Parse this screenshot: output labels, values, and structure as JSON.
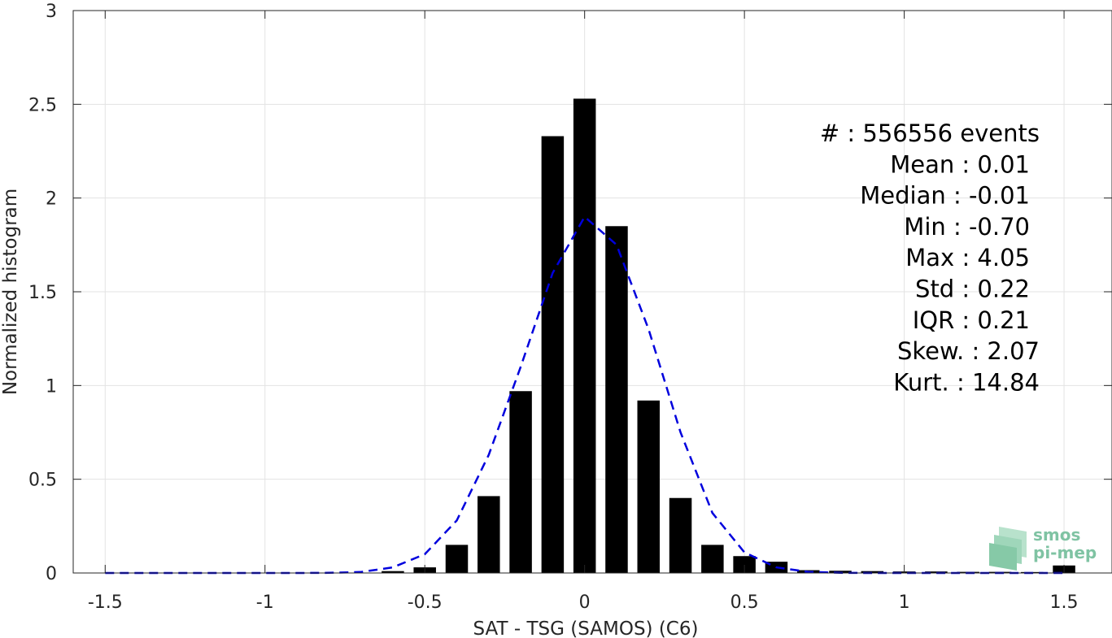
{
  "chart_data": {
    "type": "bar",
    "xlabel": "SAT - TSG (SAMOS) (C6)",
    "ylabel": "Normalized histogram",
    "xlim": [
      -1.6,
      1.65
    ],
    "ylim": [
      0,
      3
    ],
    "xticks": [
      -1.5,
      -1,
      -0.5,
      0,
      0.5,
      1,
      1.5
    ],
    "xtick_labels": [
      "-1.5",
      "-1",
      "-0.5",
      "0",
      "0.5",
      "1",
      "1.5"
    ],
    "yticks": [
      0,
      0.5,
      1,
      1.5,
      2,
      2.5,
      3
    ],
    "ytick_labels": [
      "0",
      "0.5",
      "1",
      "1.5",
      "2",
      "2.5",
      "3"
    ],
    "grid": true,
    "bar_width": 0.07,
    "bars": {
      "x": [
        -0.6,
        -0.5,
        -0.4,
        -0.3,
        -0.2,
        -0.1,
        0.0,
        0.1,
        0.2,
        0.3,
        0.4,
        0.5,
        0.6,
        0.7,
        0.8,
        0.9,
        1.0,
        1.1,
        1.2,
        1.3,
        1.4,
        1.5
      ],
      "values": [
        0.01,
        0.03,
        0.15,
        0.41,
        0.97,
        2.33,
        2.53,
        1.85,
        0.92,
        0.4,
        0.15,
        0.09,
        0.06,
        0.015,
        0.012,
        0.01,
        0.008,
        0.008,
        0.006,
        0.006,
        0.005,
        0.04
      ],
      "color": "#000000"
    },
    "fit_curve": {
      "style": "dashed",
      "color": "#0000dd",
      "x": [
        -1.5,
        -1.4,
        -1.3,
        -1.2,
        -1.1,
        -1.0,
        -0.9,
        -0.8,
        -0.7,
        -0.6,
        -0.5,
        -0.4,
        -0.3,
        -0.2,
        -0.1,
        0.0,
        0.1,
        0.2,
        0.3,
        0.4,
        0.5,
        0.6,
        0.7,
        0.8,
        0.9,
        1.0,
        1.1,
        1.2,
        1.3,
        1.4,
        1.5
      ],
      "y": [
        0,
        0,
        0,
        0,
        0,
        0,
        0,
        0.001,
        0.005,
        0.03,
        0.1,
        0.28,
        0.63,
        1.1,
        1.6,
        1.9,
        1.75,
        1.3,
        0.75,
        0.32,
        0.11,
        0.03,
        0.006,
        0.001,
        0,
        0,
        0,
        0,
        0,
        0,
        0
      ]
    },
    "annotations": [
      "#  : 556556 events",
      "Mean : 0.01",
      "Median : -0.01",
      "Min : -0.70",
      "Max : 4.05",
      "Std : 0.22",
      "IQR : 0.21",
      "Skew. : 2.07",
      "Kurt. : 14.84"
    ]
  },
  "logo": {
    "line1": "smos",
    "line2": "pi-mep",
    "color": "#7fc3a3"
  }
}
